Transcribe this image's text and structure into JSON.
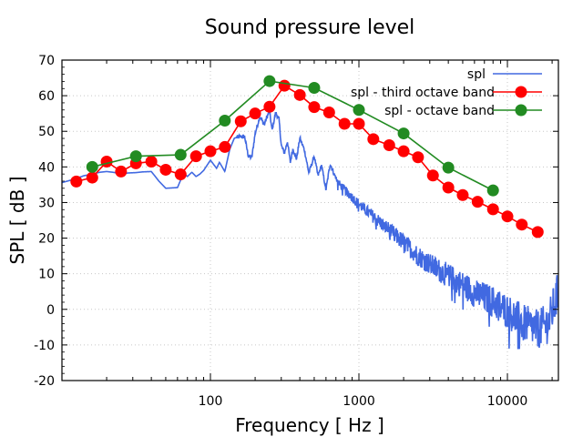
{
  "chart_data": {
    "type": "line",
    "title": "Sound pressure level",
    "xlabel": "Frequency [ Hz ]",
    "ylabel": "SPL [ dB ]",
    "xscale": "log",
    "xlim": [
      10,
      22050
    ],
    "ylim": [
      -20,
      70
    ],
    "x_ticks": [
      100,
      1000,
      10000
    ],
    "x_tick_labels": [
      "100",
      "1000",
      "10000"
    ],
    "y_ticks": [
      -20,
      -10,
      0,
      10,
      20,
      30,
      40,
      50,
      60,
      70
    ],
    "y_tick_labels": [
      "-20",
      "-10",
      "0",
      "10",
      "20",
      "30",
      "40",
      "50",
      "60",
      "70"
    ],
    "grid": true,
    "legend_position": "top-right",
    "series": [
      {
        "name": "spl",
        "color": "#4169e1",
        "marker": "none",
        "x": [
          10,
          12,
          14,
          16,
          18,
          20,
          22,
          25,
          28,
          31.5,
          35,
          40,
          45,
          50,
          55,
          60,
          66,
          70,
          75,
          80,
          85,
          90,
          100,
          110,
          115,
          125,
          135,
          145,
          160,
          170,
          180,
          190,
          200,
          215,
          230,
          250,
          260,
          275,
          290,
          300,
          315,
          330,
          345,
          360,
          380,
          400,
          430,
          460,
          500,
          530,
          560,
          600,
          640,
          680,
          720,
          800,
          1000,
          1300,
          1600,
          2000,
          2500,
          3150,
          4000,
          5000,
          6300,
          8000,
          10000,
          12500,
          16000,
          19000,
          22050
        ],
        "y": [
          35.6,
          36.5,
          37.5,
          38.0,
          38.5,
          38.7,
          38.5,
          38.1,
          38.3,
          38.4,
          38.6,
          38.7,
          36.0,
          34.0,
          34.1,
          34.2,
          38.3,
          37.3,
          38.5,
          37.3,
          38.0,
          39.0,
          41.9,
          39.6,
          41.3,
          38.7,
          45.0,
          48.1,
          48.5,
          48.5,
          43.0,
          42.6,
          49.4,
          54.1,
          51.9,
          55.8,
          50.2,
          55.3,
          53.2,
          46.0,
          43.8,
          47.2,
          41.3,
          45.1,
          42.2,
          48.1,
          44.7,
          38.3,
          43.0,
          37.5,
          40.4,
          33.6,
          40.9,
          38.0,
          36.0,
          34.0,
          30.0,
          26.0,
          23.0,
          19.5,
          16.0,
          13.0,
          10.5,
          8.0,
          5.5,
          3.5,
          1.0,
          -2.0,
          -4.0,
          -2.0,
          7.0
        ],
        "noise_amplitude_db_low": 2,
        "noise_amplitude_db_high": 12
      },
      {
        "name": "spl - third octave band",
        "color": "#ff0000",
        "marker": "circle",
        "x": [
          12.5,
          16,
          20,
          25,
          31.5,
          40,
          50,
          63,
          80,
          100,
          125,
          160,
          200,
          250,
          315,
          400,
          500,
          630,
          800,
          1000,
          1250,
          1600,
          2000,
          2500,
          3150,
          4000,
          5000,
          6300,
          8000,
          10000,
          12500,
          16000
        ],
        "y": [
          35.9,
          37.0,
          41.5,
          38.7,
          41.0,
          41.5,
          39.2,
          37.9,
          43.0,
          44.4,
          45.6,
          52.8,
          55.0,
          56.9,
          62.8,
          60.2,
          56.8,
          55.3,
          52.1,
          52.1,
          47.8,
          46.1,
          44.4,
          42.7,
          37.6,
          34.2,
          32.1,
          30.2,
          28.1,
          26.1,
          23.8,
          21.7
        ]
      },
      {
        "name": "spl - octave band",
        "color": "#228b22",
        "marker": "circle",
        "x": [
          16,
          31.5,
          63,
          125,
          250,
          500,
          1000,
          2000,
          4000,
          8000
        ],
        "y": [
          40.0,
          43.0,
          43.4,
          53.0,
          64.1,
          62.2,
          56.0,
          49.4,
          39.8,
          33.4
        ]
      }
    ]
  }
}
